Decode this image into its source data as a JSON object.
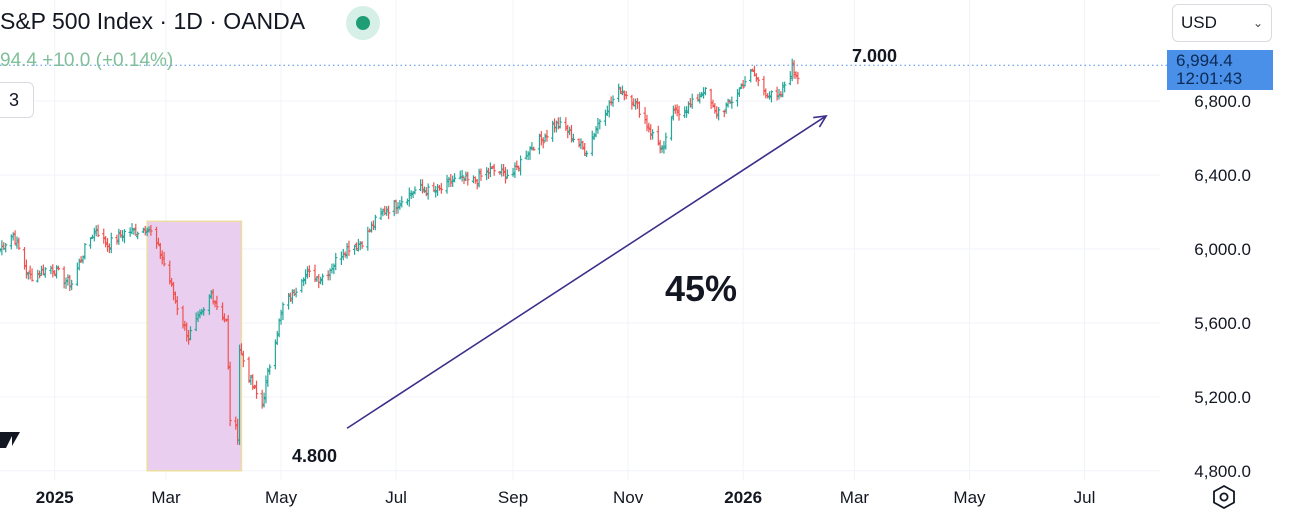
{
  "header": {
    "title": "S&P 500 Index · 1D · OANDA",
    "quote": "94.4 +10.0 (+0.14%)",
    "interval_box": "3",
    "currency": "USD"
  },
  "price_tag": {
    "price": "6,994.4",
    "countdown": "12:01:43",
    "color": "#4a90e8"
  },
  "icons": {
    "status": "market-status-dot-icon",
    "logo": "tradingview-logo-icon",
    "settings": "hexagon-settings-icon",
    "dropdown": "chevron-down-icon"
  },
  "colors": {
    "up": "#26a69a",
    "down": "#ef5350",
    "highlight": "#e6c5ec",
    "arrow": "#3d2f8a",
    "grid": "#f0f3fa"
  },
  "chart_data": {
    "type": "bar",
    "style": "OHLC bars (approximate daily values)",
    "y_axis_ticks": [
      "4,800.0",
      "5,200.0",
      "5,600.0",
      "6,000.0",
      "6,400.0",
      "6,800.0"
    ],
    "x_axis_labels": [
      "2025",
      "Mar",
      "May",
      "Jul",
      "Sep",
      "Nov",
      "2026",
      "Mar",
      "May",
      "Jul"
    ],
    "bold_x_labels": [
      "2025",
      "2026"
    ],
    "ylim": [
      4750,
      7250
    ],
    "xlim": [
      "2024-12-03",
      "2026-08-10"
    ],
    "grid": true,
    "current_price": 6994.4,
    "annotations": {
      "high_label": "7.000",
      "low_label": "4.800",
      "percent_label": "45%"
    },
    "highlight_range": {
      "x": [
        "2025-02-19",
        "2025-04-10"
      ],
      "y": [
        4800,
        6150
      ]
    },
    "trend_arrow": {
      "from": [
        "2025-06-05",
        5030
      ],
      "to": [
        "2026-02-14",
        6720
      ]
    },
    "anchors": [
      [
        "2024-12-03",
        6010
      ],
      [
        "2024-12-10",
        6060
      ],
      [
        "2024-12-18",
        5870
      ],
      [
        "2024-12-31",
        5880
      ],
      [
        "2025-01-10",
        5830
      ],
      [
        "2025-01-23",
        6110
      ],
      [
        "2025-01-29",
        6040
      ],
      [
        "2025-02-05",
        6060
      ],
      [
        "2025-02-19",
        6140
      ],
      [
        "2025-03-04",
        5800
      ],
      [
        "2025-03-13",
        5520
      ],
      [
        "2025-03-21",
        5650
      ],
      [
        "2025-03-25",
        5780
      ],
      [
        "2025-04-02",
        5600
      ],
      [
        "2025-04-04",
        5070
      ],
      [
        "2025-04-08",
        4980
      ],
      [
        "2025-04-09",
        5450
      ],
      [
        "2025-04-16",
        5270
      ],
      [
        "2025-04-21",
        5160
      ],
      [
        "2025-05-02",
        5700
      ],
      [
        "2025-05-12",
        5840
      ],
      [
        "2025-05-21",
        5850
      ],
      [
        "2025-06-06",
        6000
      ],
      [
        "2025-06-12",
        6050
      ],
      [
        "2025-07-03",
        6280
      ],
      [
        "2025-07-31",
        6350
      ],
      [
        "2025-08-08",
        6380
      ],
      [
        "2025-09-02",
        6430
      ],
      [
        "2025-09-22",
        6680
      ],
      [
        "2025-10-10",
        6550
      ],
      [
        "2025-10-28",
        6890
      ],
      [
        "2025-11-20",
        6540
      ],
      [
        "2025-11-24",
        6700
      ],
      [
        "2025-12-11",
        6860
      ],
      [
        "2025-12-17",
        6720
      ],
      [
        "2026-01-06",
        6940
      ],
      [
        "2026-01-20",
        6800
      ],
      [
        "2026-01-27",
        6970
      ],
      [
        "2026-01-31",
        6940
      ]
    ]
  }
}
